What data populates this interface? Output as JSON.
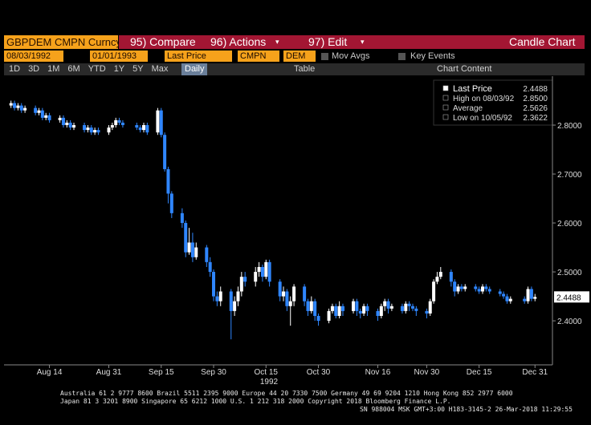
{
  "header": {
    "security": "GBPDEM CMPN Curncy",
    "menu": [
      "95) Compare",
      "96) Actions",
      "97) Edit"
    ],
    "view": "Candle Chart"
  },
  "controls": {
    "start_date": "08/03/1992",
    "end_date": "01/01/1993",
    "field": "Last Price",
    "source": "CMPN",
    "currency": "DEM",
    "mov_avgs": "Mov Avgs",
    "key_events": "Key Events",
    "periods": [
      "1D",
      "3D",
      "1M",
      "6M",
      "YTD",
      "1Y",
      "5Y",
      "Max"
    ],
    "frequency": "Daily",
    "table": "Table",
    "chart_content": "Chart Content"
  },
  "stats": [
    {
      "label": "Last Price",
      "value": "2.4488"
    },
    {
      "label": "High on 08/03/92",
      "value": "2.8500"
    },
    {
      "label": "Average",
      "value": "2.5626"
    },
    {
      "label": "Low on 10/05/92",
      "value": "2.3622"
    }
  ],
  "chart_data": {
    "type": "candlestick",
    "x_label": "1992",
    "up_color": "#ffffff",
    "down_color": "#2f86ff",
    "last_price_tag": "2.4488",
    "x": [
      "1992-08-03",
      "1992-08-04",
      "1992-08-05",
      "1992-08-06",
      "1992-08-07",
      "1992-08-10",
      "1992-08-11",
      "1992-08-12",
      "1992-08-13",
      "1992-08-14",
      "1992-08-17",
      "1992-08-18",
      "1992-08-19",
      "1992-08-20",
      "1992-08-21",
      "1992-08-24",
      "1992-08-25",
      "1992-08-26",
      "1992-08-27",
      "1992-08-28",
      "1992-08-31",
      "1992-09-01",
      "1992-09-02",
      "1992-09-03",
      "1992-09-04",
      "1992-09-08",
      "1992-09-09",
      "1992-09-10",
      "1992-09-11",
      "1992-09-14",
      "1992-09-15",
      "1992-09-16",
      "1992-09-17",
      "1992-09-18",
      "1992-09-21",
      "1992-09-22",
      "1992-09-23",
      "1992-09-24",
      "1992-09-25",
      "1992-09-28",
      "1992-09-29",
      "1992-09-30",
      "1992-10-01",
      "1992-10-02",
      "1992-10-05",
      "1992-10-06",
      "1992-10-07",
      "1992-10-08",
      "1992-10-09",
      "1992-10-12",
      "1992-10-13",
      "1992-10-14",
      "1992-10-15",
      "1992-10-16",
      "1992-10-19",
      "1992-10-20",
      "1992-10-21",
      "1992-10-22",
      "1992-10-23",
      "1992-10-26",
      "1992-10-27",
      "1992-10-28",
      "1992-10-29",
      "1992-10-30",
      "1992-11-02",
      "1992-11-03",
      "1992-11-04",
      "1992-11-05",
      "1992-11-06",
      "1992-11-09",
      "1992-11-10",
      "1992-11-11",
      "1992-11-12",
      "1992-11-13",
      "1992-11-16",
      "1992-11-17",
      "1992-11-18",
      "1992-11-19",
      "1992-11-20",
      "1992-11-23",
      "1992-11-24",
      "1992-11-25",
      "1992-11-26",
      "1992-11-27",
      "1992-11-30",
      "1992-12-01",
      "1992-12-02",
      "1992-12-03",
      "1992-12-04",
      "1992-12-07",
      "1992-12-08",
      "1992-12-09",
      "1992-12-10",
      "1992-12-11",
      "1992-12-14",
      "1992-12-15",
      "1992-12-16",
      "1992-12-17",
      "1992-12-18",
      "1992-12-21",
      "1992-12-22",
      "1992-12-23",
      "1992-12-24",
      "1992-12-28",
      "1992-12-29",
      "1992-12-30",
      "1992-12-31"
    ],
    "open": [
      2.84,
      2.845,
      2.835,
      2.84,
      2.83,
      2.835,
      2.825,
      2.83,
      2.815,
      2.82,
      2.81,
      2.815,
      2.8,
      2.805,
      2.795,
      2.8,
      2.79,
      2.795,
      2.785,
      2.79,
      2.785,
      2.795,
      2.8,
      2.81,
      2.805,
      2.8,
      2.795,
      2.79,
      2.8,
      2.785,
      2.83,
      2.78,
      2.71,
      2.66,
      2.62,
      2.6,
      2.54,
      2.56,
      2.53,
      2.55,
      2.52,
      2.5,
      2.45,
      2.44,
      2.46,
      2.42,
      2.44,
      2.46,
      2.49,
      2.48,
      2.5,
      2.51,
      2.49,
      2.52,
      2.48,
      2.45,
      2.46,
      2.43,
      2.44,
      2.47,
      2.44,
      2.42,
      2.44,
      2.41,
      2.4,
      2.42,
      2.43,
      2.41,
      2.43,
      2.42,
      2.44,
      2.42,
      2.415,
      2.43,
      2.42,
      2.41,
      2.43,
      2.44,
      2.425,
      2.43,
      2.42,
      2.435,
      2.43,
      2.425,
      2.42,
      2.415,
      2.44,
      2.48,
      2.49,
      2.5,
      2.48,
      2.46,
      2.47,
      2.465,
      2.47,
      2.465,
      2.46,
      2.47,
      2.465,
      2.46,
      2.455,
      2.45,
      2.44,
      2.445,
      2.44,
      2.465,
      2.445
    ],
    "high": [
      2.85,
      2.85,
      2.845,
      2.845,
      2.84,
      2.84,
      2.835,
      2.835,
      2.825,
      2.825,
      2.82,
      2.82,
      2.81,
      2.81,
      2.805,
      2.805,
      2.8,
      2.8,
      2.795,
      2.795,
      2.8,
      2.805,
      2.815,
      2.815,
      2.81,
      2.805,
      2.8,
      2.805,
      2.805,
      2.835,
      2.835,
      2.785,
      2.715,
      2.665,
      2.63,
      2.605,
      2.59,
      2.58,
      2.56,
      2.555,
      2.53,
      2.505,
      2.46,
      2.47,
      2.465,
      2.45,
      2.47,
      2.5,
      2.5,
      2.51,
      2.52,
      2.515,
      2.525,
      2.525,
      2.485,
      2.47,
      2.465,
      2.45,
      2.475,
      2.475,
      2.445,
      2.45,
      2.445,
      2.415,
      2.425,
      2.435,
      2.435,
      2.44,
      2.435,
      2.445,
      2.445,
      2.425,
      2.435,
      2.435,
      2.425,
      2.435,
      2.445,
      2.445,
      2.435,
      2.435,
      2.44,
      2.44,
      2.435,
      2.43,
      2.425,
      2.445,
      2.485,
      2.5,
      2.51,
      2.505,
      2.485,
      2.475,
      2.475,
      2.475,
      2.475,
      2.47,
      2.475,
      2.475,
      2.47,
      2.465,
      2.46,
      2.455,
      2.45,
      2.45,
      2.47,
      2.47,
      2.455
    ],
    "low": [
      2.835,
      2.83,
      2.83,
      2.825,
      2.825,
      2.82,
      2.82,
      2.81,
      2.81,
      2.805,
      2.805,
      2.795,
      2.795,
      2.79,
      2.79,
      2.785,
      2.785,
      2.78,
      2.78,
      2.78,
      2.78,
      2.79,
      2.795,
      2.8,
      2.795,
      2.79,
      2.785,
      2.785,
      2.78,
      2.78,
      2.775,
      2.705,
      2.64,
      2.61,
      2.59,
      2.53,
      2.535,
      2.52,
      2.525,
      2.51,
      2.49,
      2.44,
      2.43,
      2.43,
      2.3622,
      2.41,
      2.43,
      2.45,
      2.47,
      2.47,
      2.49,
      2.48,
      2.485,
      2.47,
      2.44,
      2.44,
      2.42,
      2.39,
      2.43,
      2.43,
      2.41,
      2.415,
      2.4,
      2.39,
      2.395,
      2.415,
      2.405,
      2.405,
      2.41,
      2.415,
      2.41,
      2.405,
      2.41,
      2.41,
      2.4,
      2.405,
      2.42,
      2.415,
      2.42,
      2.415,
      2.415,
      2.42,
      2.42,
      2.41,
      2.405,
      2.41,
      2.435,
      2.475,
      2.485,
      2.47,
      2.45,
      2.455,
      2.46,
      2.46,
      2.46,
      2.455,
      2.455,
      2.46,
      2.455,
      2.45,
      2.445,
      2.435,
      2.435,
      2.435,
      2.435,
      2.44,
      2.44
    ],
    "close": [
      2.845,
      2.835,
      2.84,
      2.83,
      2.835,
      2.825,
      2.83,
      2.815,
      2.82,
      2.81,
      2.815,
      2.8,
      2.805,
      2.795,
      2.8,
      2.79,
      2.795,
      2.785,
      2.79,
      2.785,
      2.795,
      2.8,
      2.81,
      2.805,
      2.8,
      2.795,
      2.79,
      2.8,
      2.785,
      2.83,
      2.78,
      2.71,
      2.66,
      2.62,
      2.6,
      2.54,
      2.56,
      2.53,
      2.55,
      2.52,
      2.5,
      2.45,
      2.44,
      2.46,
      2.42,
      2.44,
      2.46,
      2.49,
      2.48,
      2.5,
      2.51,
      2.49,
      2.52,
      2.48,
      2.45,
      2.46,
      2.43,
      2.44,
      2.47,
      2.44,
      2.42,
      2.44,
      2.41,
      2.4,
      2.42,
      2.43,
      2.41,
      2.43,
      2.42,
      2.44,
      2.42,
      2.415,
      2.43,
      2.42,
      2.41,
      2.43,
      2.44,
      2.425,
      2.43,
      2.42,
      2.435,
      2.43,
      2.425,
      2.42,
      2.415,
      2.44,
      2.48,
      2.49,
      2.5,
      2.48,
      2.46,
      2.47,
      2.465,
      2.47,
      2.465,
      2.46,
      2.47,
      2.465,
      2.46,
      2.455,
      2.45,
      2.44,
      2.445,
      2.44,
      2.465,
      2.445,
      2.4488
    ],
    "xlim": [
      "1992-08-01",
      "1993-01-05"
    ],
    "xticks": [
      {
        "value": "1992-08-14",
        "label": "Aug 14"
      },
      {
        "value": "1992-08-31",
        "label": "Aug 31"
      },
      {
        "value": "1992-09-15",
        "label": "Sep 15"
      },
      {
        "value": "1992-09-30",
        "label": "Sep 30"
      },
      {
        "value": "1992-10-15",
        "label": "Oct 15"
      },
      {
        "value": "1992-10-30",
        "label": "Oct 30"
      },
      {
        "value": "1992-11-16",
        "label": "Nov 16"
      },
      {
        "value": "1992-11-30",
        "label": "Nov 30"
      },
      {
        "value": "1992-12-15",
        "label": "Dec 15"
      },
      {
        "value": "1992-12-31",
        "label": "Dec 31"
      }
    ],
    "ylim": [
      2.31,
      2.9
    ],
    "yticks": [
      {
        "value": 2.4,
        "label": "2.4000"
      },
      {
        "value": 2.5,
        "label": "2.5000"
      },
      {
        "value": 2.6,
        "label": "2.6000"
      },
      {
        "value": 2.7,
        "label": "2.7000"
      },
      {
        "value": 2.8,
        "label": "2.8000"
      }
    ]
  },
  "footer": [
    "Australia 61 2 9777 8600 Brazil 5511 2395 9000 Europe 44 20 7330 7500 Germany 49 69 9204 1210 Hong Kong 852 2977 6000",
    "Japan 81 3 3201 8900       Singapore 65 6212 1000      U.S. 1 212 318 2000          Copyright 2018 Bloomberg Finance L.P.",
    "SN 988004 MSK  GMT+3:00 H183-3145-2 26-Mar-2018 11:29:55"
  ]
}
